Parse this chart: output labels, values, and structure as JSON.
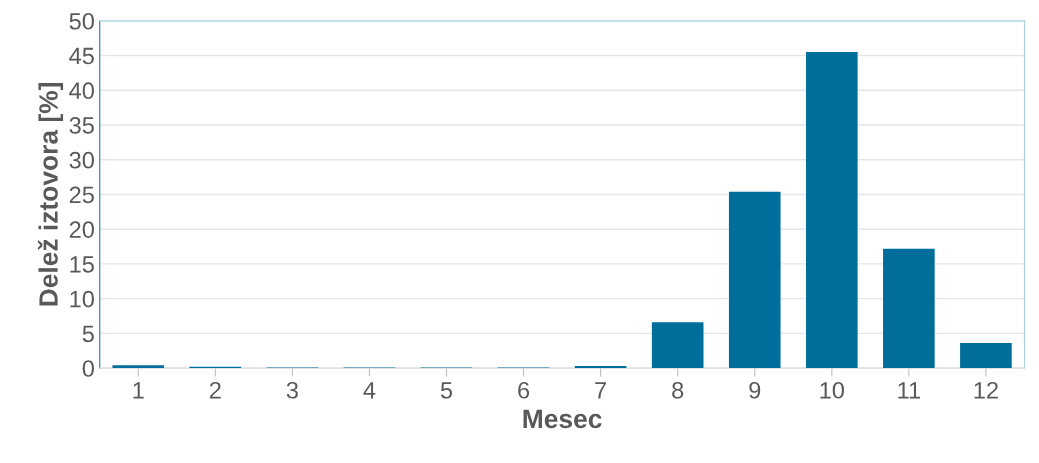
{
  "chart_data": {
    "type": "bar",
    "xlabel": "Mesec",
    "ylabel": "Delež iztovora [%]",
    "categories": [
      "1",
      "2",
      "3",
      "4",
      "5",
      "6",
      "7",
      "8",
      "9",
      "10",
      "11",
      "12"
    ],
    "values": [
      0.4,
      0.2,
      0.1,
      0.1,
      0.1,
      0.1,
      0.3,
      6.6,
      25.4,
      45.5,
      17.2,
      3.6
    ],
    "color": "#006e9b",
    "ylim": [
      0,
      50
    ],
    "yticks": [
      0,
      5,
      10,
      15,
      20,
      25,
      30,
      35,
      40,
      45,
      50
    ],
    "grid": "y",
    "legend": false
  }
}
